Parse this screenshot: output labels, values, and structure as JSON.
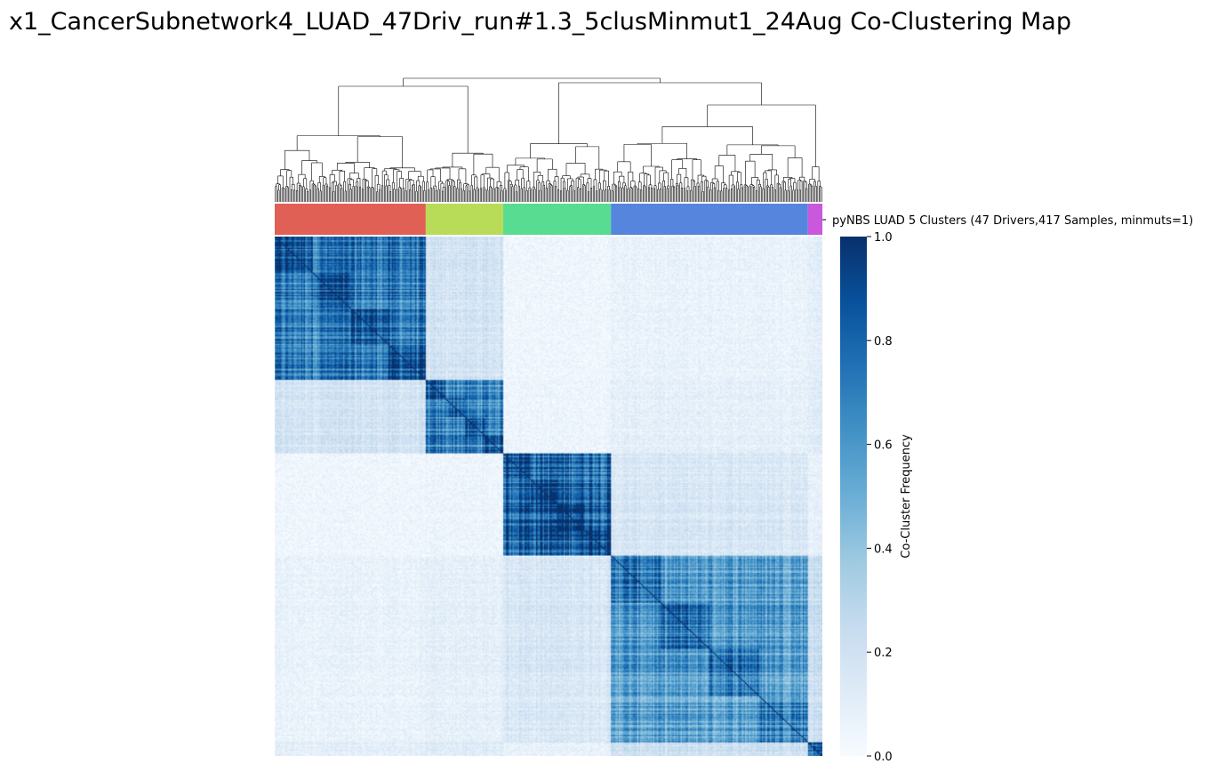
{
  "chart_data": {
    "type": "heatmap",
    "title": "x1_CancerSubnetwork4_LUAD_47Driv_run#1.3_5clusMinmut1_24Aug Co-Clustering Map",
    "row_colors_label": "pyNBS LUAD 5 Clusters (47 Drivers,417 Samples, minmuts=1)",
    "n_samples": 417,
    "colorbar": {
      "label": "Co-Cluster Frequency",
      "ticks": [
        "0.0",
        "0.2",
        "0.4",
        "0.6",
        "0.8",
        "1.0"
      ],
      "range": [
        0,
        1
      ],
      "colormap": "Blues"
    },
    "clusters": [
      {
        "id": 1,
        "color": "#e06055",
        "size": 115
      },
      {
        "id": 2,
        "color": "#b8dc58",
        "size": 59
      },
      {
        "id": 3,
        "color": "#58dc92",
        "size": 82
      },
      {
        "id": 4,
        "color": "#5585dc",
        "size": 150
      },
      {
        "id": 5,
        "color": "#c958dc",
        "size": 11
      }
    ],
    "cluster_similarity": [
      [
        0.72,
        0.18,
        0.04,
        0.07,
        0.1
      ],
      [
        0.18,
        0.68,
        0.05,
        0.09,
        0.12
      ],
      [
        0.04,
        0.05,
        0.85,
        0.16,
        0.08
      ],
      [
        0.07,
        0.09,
        0.16,
        0.58,
        0.22
      ],
      [
        0.1,
        0.12,
        0.08,
        0.22,
        0.8
      ]
    ],
    "dendrogram": "hierarchical clustering of samples (top)",
    "grid": false
  }
}
